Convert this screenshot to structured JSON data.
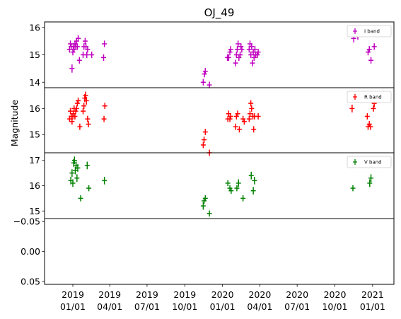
{
  "chart_data": {
    "type": "scatter",
    "title": "OJ_49",
    "ylabel": "Magnitude",
    "xlabel": "",
    "x_ticks": [
      {
        "date": "2019-01-01",
        "label": [
          "2019",
          "01/01"
        ]
      },
      {
        "date": "2019-04-01",
        "label": [
          "2019",
          "04/01"
        ]
      },
      {
        "date": "2019-07-01",
        "label": [
          "2019",
          "07/01"
        ]
      },
      {
        "date": "2019-10-01",
        "label": [
          "2019",
          "10/01"
        ]
      },
      {
        "date": "2020-01-01",
        "label": [
          "2020",
          "01/01"
        ]
      },
      {
        "date": "2020-04-01",
        "label": [
          "2020",
          "04/01"
        ]
      },
      {
        "date": "2020-07-01",
        "label": [
          "2020",
          "07/01"
        ]
      },
      {
        "date": "2020-10-01",
        "label": [
          "2020",
          "10/01"
        ]
      },
      {
        "date": "2021-01-01",
        "label": [
          "2021",
          "01/01"
        ]
      }
    ],
    "x_range": [
      "2018-10-24",
      "2021-02-22"
    ],
    "panels": [
      {
        "series_name": "I band",
        "color": "#bf00bf",
        "ylim": [
          16.2,
          13.8
        ],
        "y_inverted": true,
        "yticks": [
          14,
          15,
          16
        ],
        "ytick_labels": [
          "14",
          "15",
          "16"
        ],
        "legend_loc": "top-right",
        "points": [
          {
            "x": "2018-12-24",
            "y": 15.2,
            "err": 0.12
          },
          {
            "x": "2018-12-26",
            "y": 15.4,
            "err": 0.12
          },
          {
            "x": "2018-12-28",
            "y": 15.3,
            "err": 0.12
          },
          {
            "x": "2018-12-30",
            "y": 14.5,
            "err": 0.15
          },
          {
            "x": "2019-01-01",
            "y": 15.1,
            "err": 0.12
          },
          {
            "x": "2019-01-02",
            "y": 15.3,
            "err": 0.12
          },
          {
            "x": "2019-01-04",
            "y": 15.2,
            "err": 0.12
          },
          {
            "x": "2019-01-06",
            "y": 15.4,
            "err": 0.12
          },
          {
            "x": "2019-01-08",
            "y": 15.3,
            "err": 0.12
          },
          {
            "x": "2019-01-10",
            "y": 15.5,
            "err": 0.12
          },
          {
            "x": "2019-01-12",
            "y": 15.3,
            "err": 0.12
          },
          {
            "x": "2019-01-14",
            "y": 15.6,
            "err": 0.12
          },
          {
            "x": "2019-01-17",
            "y": 14.8,
            "err": 0.12
          },
          {
            "x": "2019-01-26",
            "y": 15.0,
            "err": 0.12
          },
          {
            "x": "2019-01-28",
            "y": 15.3,
            "err": 0.12
          },
          {
            "x": "2019-01-31",
            "y": 15.5,
            "err": 0.12
          },
          {
            "x": "2019-02-02",
            "y": 15.3,
            "err": 0.12
          },
          {
            "x": "2019-02-04",
            "y": 15.0,
            "err": 0.12
          },
          {
            "x": "2019-02-06",
            "y": 15.2,
            "err": 0.12
          },
          {
            "x": "2019-02-16",
            "y": 15.0,
            "err": 0.12
          },
          {
            "x": "2019-03-17",
            "y": 14.9,
            "err": 0.12
          },
          {
            "x": "2019-03-19",
            "y": 15.4,
            "err": 0.12
          },
          {
            "x": "2019-11-15",
            "y": 14.0,
            "err": 0.12
          },
          {
            "x": "2019-11-18",
            "y": 14.3,
            "err": 0.12
          },
          {
            "x": "2019-11-20",
            "y": 14.4,
            "err": 0.12
          },
          {
            "x": "2019-11-30",
            "y": 13.9,
            "err": 0.12
          },
          {
            "x": "2020-01-13",
            "y": 14.9,
            "err": 0.12
          },
          {
            "x": "2020-01-16",
            "y": 14.9,
            "err": 0.12
          },
          {
            "x": "2020-01-19",
            "y": 15.1,
            "err": 0.12
          },
          {
            "x": "2020-01-21",
            "y": 15.2,
            "err": 0.12
          },
          {
            "x": "2020-02-02",
            "y": 14.7,
            "err": 0.12
          },
          {
            "x": "2020-02-04",
            "y": 15.0,
            "err": 0.12
          },
          {
            "x": "2020-02-06",
            "y": 15.2,
            "err": 0.12
          },
          {
            "x": "2020-02-08",
            "y": 15.4,
            "err": 0.12
          },
          {
            "x": "2020-02-10",
            "y": 14.9,
            "err": 0.12
          },
          {
            "x": "2020-02-13",
            "y": 15.0,
            "err": 0.12
          },
          {
            "x": "2020-02-15",
            "y": 15.3,
            "err": 0.12
          },
          {
            "x": "2020-02-17",
            "y": 15.2,
            "err": 0.12
          },
          {
            "x": "2020-03-06",
            "y": 15.2,
            "err": 0.12
          },
          {
            "x": "2020-03-08",
            "y": 15.4,
            "err": 0.12
          },
          {
            "x": "2020-03-10",
            "y": 15.0,
            "err": 0.12
          },
          {
            "x": "2020-03-12",
            "y": 15.3,
            "err": 0.12
          },
          {
            "x": "2020-03-14",
            "y": 14.7,
            "err": 0.12
          },
          {
            "x": "2020-03-16",
            "y": 15.1,
            "err": 0.12
          },
          {
            "x": "2020-03-18",
            "y": 14.9,
            "err": 0.12
          },
          {
            "x": "2020-03-20",
            "y": 15.2,
            "err": 0.12
          },
          {
            "x": "2020-03-22",
            "y": 15.0,
            "err": 0.12
          },
          {
            "x": "2020-03-26",
            "y": 15.0,
            "err": 0.12
          },
          {
            "x": "2020-03-28",
            "y": 15.1,
            "err": 0.12
          },
          {
            "x": "2020-11-16",
            "y": 15.6,
            "err": 0.15
          },
          {
            "x": "2020-11-21",
            "y": 15.8,
            "err": 0.15
          },
          {
            "x": "2020-11-26",
            "y": 15.7,
            "err": 0.15
          },
          {
            "x": "2020-12-21",
            "y": 15.1,
            "err": 0.12
          },
          {
            "x": "2020-12-24",
            "y": 15.2,
            "err": 0.12
          },
          {
            "x": "2020-12-28",
            "y": 14.8,
            "err": 0.12
          },
          {
            "x": "2021-01-05",
            "y": 15.3,
            "err": 0.12
          }
        ]
      },
      {
        "series_name": "R band",
        "color": "#ff0000",
        "ylim": [
          16.8,
          14.3
        ],
        "y_inverted": true,
        "yticks": [
          15,
          16
        ],
        "ytick_labels": [
          "15",
          "16"
        ],
        "legend_loc": "top-right",
        "points": [
          {
            "x": "2018-12-24",
            "y": 15.6,
            "err": 0.12
          },
          {
            "x": "2018-12-26",
            "y": 15.9,
            "err": 0.12
          },
          {
            "x": "2018-12-28",
            "y": 15.7,
            "err": 0.12
          },
          {
            "x": "2018-12-30",
            "y": 15.5,
            "err": 0.12
          },
          {
            "x": "2019-01-01",
            "y": 15.7,
            "err": 0.12
          },
          {
            "x": "2019-01-02",
            "y": 15.8,
            "err": 0.12
          },
          {
            "x": "2019-01-04",
            "y": 16.0,
            "err": 0.12
          },
          {
            "x": "2019-01-06",
            "y": 15.7,
            "err": 0.12
          },
          {
            "x": "2019-01-08",
            "y": 15.9,
            "err": 0.12
          },
          {
            "x": "2019-01-10",
            "y": 16.0,
            "err": 0.12
          },
          {
            "x": "2019-01-12",
            "y": 16.2,
            "err": 0.12
          },
          {
            "x": "2019-01-14",
            "y": 16.3,
            "err": 0.12
          },
          {
            "x": "2019-01-18",
            "y": 15.3,
            "err": 0.12
          },
          {
            "x": "2019-01-26",
            "y": 15.9,
            "err": 0.12
          },
          {
            "x": "2019-01-28",
            "y": 16.1,
            "err": 0.12
          },
          {
            "x": "2019-01-30",
            "y": 16.4,
            "err": 0.15
          },
          {
            "x": "2019-02-01",
            "y": 16.5,
            "err": 0.15
          },
          {
            "x": "2019-02-03",
            "y": 16.3,
            "err": 0.15
          },
          {
            "x": "2019-02-06",
            "y": 15.6,
            "err": 0.12
          },
          {
            "x": "2019-02-08",
            "y": 15.4,
            "err": 0.12
          },
          {
            "x": "2019-03-18",
            "y": 15.6,
            "err": 0.12
          },
          {
            "x": "2019-03-20",
            "y": 16.1,
            "err": 0.12
          },
          {
            "x": "2019-11-15",
            "y": 14.6,
            "err": 0.12
          },
          {
            "x": "2019-11-17",
            "y": 14.8,
            "err": 0.12
          },
          {
            "x": "2019-11-20",
            "y": 15.1,
            "err": 0.12
          },
          {
            "x": "2019-11-30",
            "y": 14.3,
            "err": 0.12
          },
          {
            "x": "2020-01-14",
            "y": 15.6,
            "err": 0.12
          },
          {
            "x": "2020-01-16",
            "y": 15.8,
            "err": 0.12
          },
          {
            "x": "2020-01-19",
            "y": 15.6,
            "err": 0.12
          },
          {
            "x": "2020-01-21",
            "y": 15.7,
            "err": 0.12
          },
          {
            "x": "2020-02-02",
            "y": 15.3,
            "err": 0.12
          },
          {
            "x": "2020-02-04",
            "y": 15.7,
            "err": 0.12
          },
          {
            "x": "2020-02-07",
            "y": 15.8,
            "err": 0.12
          },
          {
            "x": "2020-02-11",
            "y": 15.2,
            "err": 0.12
          },
          {
            "x": "2020-02-20",
            "y": 15.6,
            "err": 0.12
          },
          {
            "x": "2020-02-23",
            "y": 15.5,
            "err": 0.12
          },
          {
            "x": "2020-03-06",
            "y": 15.6,
            "err": 0.12
          },
          {
            "x": "2020-03-08",
            "y": 15.8,
            "err": 0.12
          },
          {
            "x": "2020-03-10",
            "y": 16.2,
            "err": 0.12
          },
          {
            "x": "2020-03-12",
            "y": 16.0,
            "err": 0.12
          },
          {
            "x": "2020-03-15",
            "y": 15.7,
            "err": 0.12
          },
          {
            "x": "2020-03-17",
            "y": 15.2,
            "err": 0.12
          },
          {
            "x": "2020-03-19",
            "y": 15.7,
            "err": 0.12
          },
          {
            "x": "2020-03-28",
            "y": 15.7,
            "err": 0.12
          },
          {
            "x": "2020-11-12",
            "y": 16.0,
            "err": 0.15
          },
          {
            "x": "2020-12-19",
            "y": 15.7,
            "err": 0.12
          },
          {
            "x": "2020-12-21",
            "y": 15.3,
            "err": 0.12
          },
          {
            "x": "2020-12-24",
            "y": 15.4,
            "err": 0.12
          },
          {
            "x": "2020-12-27",
            "y": 15.3,
            "err": 0.12
          },
          {
            "x": "2021-01-03",
            "y": 16.0,
            "err": 0.12
          },
          {
            "x": "2021-01-05",
            "y": 16.2,
            "err": 0.15
          }
        ]
      },
      {
        "series_name": "V band",
        "color": "#008000",
        "ylim": [
          17.3,
          14.7
        ],
        "y_inverted": true,
        "yticks": [
          15,
          16,
          17
        ],
        "ytick_labels": [
          "15",
          "16",
          "17"
        ],
        "legend_loc": "top-right",
        "points": [
          {
            "x": "2018-12-27",
            "y": 16.2,
            "err": 0.15
          },
          {
            "x": "2018-12-30",
            "y": 16.5,
            "err": 0.15
          },
          {
            "x": "2019-01-01",
            "y": 16.1,
            "err": 0.15
          },
          {
            "x": "2019-01-03",
            "y": 16.9,
            "err": 0.15
          },
          {
            "x": "2019-01-05",
            "y": 17.0,
            "err": 0.15
          },
          {
            "x": "2019-01-07",
            "y": 16.6,
            "err": 0.15
          },
          {
            "x": "2019-01-09",
            "y": 16.8,
            "err": 0.15
          },
          {
            "x": "2019-01-11",
            "y": 16.3,
            "err": 0.15
          },
          {
            "x": "2019-01-13",
            "y": 16.7,
            "err": 0.15
          },
          {
            "x": "2019-01-20",
            "y": 15.5,
            "err": 0.12
          },
          {
            "x": "2019-02-05",
            "y": 16.8,
            "err": 0.15
          },
          {
            "x": "2019-02-09",
            "y": 15.9,
            "err": 0.12
          },
          {
            "x": "2019-03-19",
            "y": 16.2,
            "err": 0.15
          },
          {
            "x": "2019-11-15",
            "y": 15.2,
            "err": 0.15
          },
          {
            "x": "2019-11-17",
            "y": 15.4,
            "err": 0.12
          },
          {
            "x": "2019-11-20",
            "y": 15.5,
            "err": 0.12
          },
          {
            "x": "2019-11-30",
            "y": 14.9,
            "err": 0.12
          },
          {
            "x": "2020-01-14",
            "y": 16.1,
            "err": 0.12
          },
          {
            "x": "2020-01-19",
            "y": 15.9,
            "err": 0.12
          },
          {
            "x": "2020-01-22",
            "y": 15.8,
            "err": 0.12
          },
          {
            "x": "2020-02-05",
            "y": 15.9,
            "err": 0.12
          },
          {
            "x": "2020-02-09",
            "y": 16.1,
            "err": 0.15
          },
          {
            "x": "2020-02-20",
            "y": 15.5,
            "err": 0.12
          },
          {
            "x": "2020-03-11",
            "y": 16.4,
            "err": 0.15
          },
          {
            "x": "2020-03-16",
            "y": 15.8,
            "err": 0.15
          },
          {
            "x": "2020-03-19",
            "y": 16.2,
            "err": 0.15
          },
          {
            "x": "2020-11-14",
            "y": 15.9,
            "err": 0.12
          },
          {
            "x": "2020-12-25",
            "y": 16.1,
            "err": 0.15
          },
          {
            "x": "2020-12-28",
            "y": 16.3,
            "err": 0.15
          }
        ]
      },
      {
        "series_name": "",
        "color": "#000000",
        "ylim": [
          -0.055,
          0.055
        ],
        "y_inverted": false,
        "yticks": [
          0.05,
          0.0,
          -0.05
        ],
        "ytick_labels": [
          "0.05",
          "0.00",
          "−0.05"
        ],
        "legend_loc": "",
        "points": []
      }
    ]
  }
}
